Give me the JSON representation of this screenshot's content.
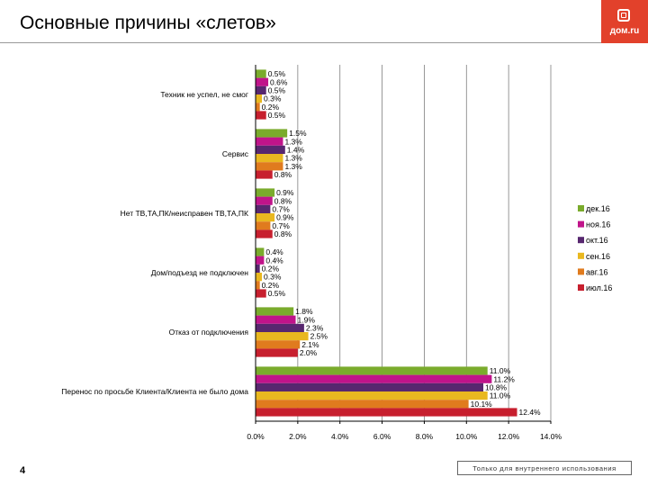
{
  "header": {
    "title": "Основные причины «слетов»",
    "logo_text": "дом.ru"
  },
  "chart_data": {
    "type": "bar",
    "orientation": "horizontal",
    "categories": [
      "Техник не успел, не смог",
      "Сервис",
      "Нет ТВ,ТА,ПК/неисправен ТВ,ТА,ПК",
      "Дом/подъезд не подключен",
      "Отказ от подключения",
      "Перенос по просьбе Клиента/Клиента не было дома"
    ],
    "series": [
      {
        "name": "дек.16",
        "color": "#7aab2c",
        "values": [
          0.5,
          1.5,
          0.9,
          0.4,
          1.8,
          11.0
        ],
        "labels": [
          "0.5%",
          "1.5%",
          "0.9%",
          "0.4%",
          "1.8%",
          "11.0%"
        ]
      },
      {
        "name": "ноя.16",
        "color": "#c0148a",
        "values": [
          0.6,
          1.3,
          0.8,
          0.4,
          1.9,
          11.2
        ],
        "labels": [
          "0.6%",
          "1.3%",
          "0.8%",
          "0.4%",
          "1.9%",
          "11.2%"
        ]
      },
      {
        "name": "окт.16",
        "color": "#57276f",
        "values": [
          0.5,
          1.4,
          0.7,
          0.2,
          2.3,
          10.8
        ],
        "labels": [
          "0.5%",
          "1.4%",
          "0.7%",
          "0.2%",
          "2.3%",
          "10.8%"
        ]
      },
      {
        "name": "сен.16",
        "color": "#e9b820",
        "values": [
          0.3,
          1.3,
          0.9,
          0.3,
          2.5,
          11.0
        ],
        "labels": [
          "0.3%",
          "1.3%",
          "0.9%",
          "0.3%",
          "2.5%",
          "11.0%"
        ]
      },
      {
        "name": "авг.16",
        "color": "#e07b1e",
        "values": [
          0.2,
          1.3,
          0.7,
          0.2,
          2.1,
          10.1
        ],
        "labels": [
          "0.2%",
          "1.3%",
          "0.7%",
          "0.2%",
          "2.1%",
          "10.1%"
        ]
      },
      {
        "name": "июл.16",
        "color": "#c71f2e",
        "values": [
          0.5,
          0.8,
          0.8,
          0.5,
          2.0,
          12.4
        ],
        "labels": [
          "0.5%",
          "0.8%",
          "0.8%",
          "0.5%",
          "2.0%",
          "12.4%"
        ]
      }
    ],
    "xlim": [
      0,
      14
    ],
    "xticks": [
      0,
      2,
      4,
      6,
      8,
      10,
      12,
      14
    ],
    "xtick_labels": [
      "0.0%",
      "2.0%",
      "4.0%",
      "6.0%",
      "8.0%",
      "10.0%",
      "12.0%",
      "14.0%"
    ],
    "grid": true,
    "legend_position": "right"
  },
  "footer": {
    "page_number": "4",
    "note": "Только для внутреннего использования"
  }
}
